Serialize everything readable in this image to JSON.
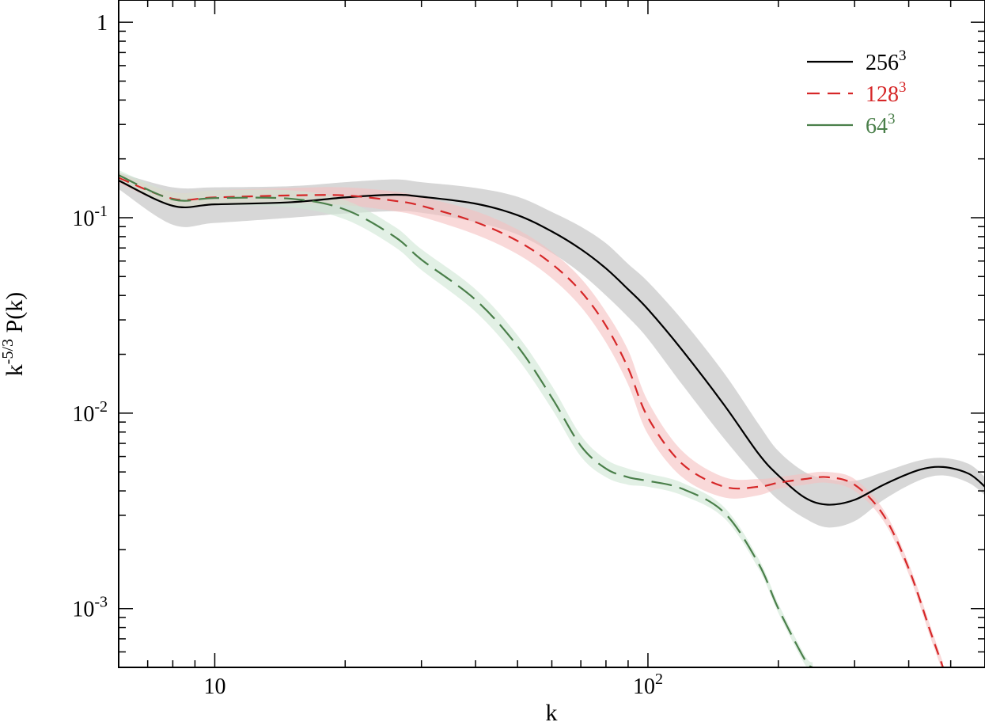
{
  "chart_data": {
    "type": "line",
    "title": "",
    "xlabel": "k",
    "ylabel": "k-5/3 P(k)",
    "ylabel_parts": {
      "base": "k",
      "sup": "-5/3",
      "rest": " P(k)"
    },
    "x_scale": "log",
    "y_scale": "log",
    "xlim": [
      6,
      600
    ],
    "ylim": [
      0.0005,
      1.3
    ],
    "x_ticks": [
      {
        "value": 10,
        "label": "10",
        "sup": ""
      },
      {
        "value": 100,
        "label": "10",
        "sup": "2"
      }
    ],
    "y_ticks": [
      {
        "value": 1,
        "label": "1",
        "sup": ""
      },
      {
        "value": 0.1,
        "label": "10",
        "sup": "-1"
      },
      {
        "value": 0.01,
        "label": "10",
        "sup": "-2"
      },
      {
        "value": 0.001,
        "label": "10",
        "sup": "-3"
      }
    ],
    "grid": false,
    "legend_position": "top-right",
    "series": [
      {
        "name": "256",
        "name_sup": "3",
        "color": "#000000",
        "band_color": "#bdbdbd",
        "dash": "solid",
        "x": [
          6,
          8,
          10,
          15,
          20,
          26,
          30,
          40,
          50,
          60,
          70,
          80,
          90,
          100,
          120,
          150,
          180,
          200,
          230,
          260,
          300,
          350,
          420,
          480,
          550,
          600
        ],
        "y": [
          0.155,
          0.115,
          0.117,
          0.12,
          0.127,
          0.131,
          0.128,
          0.118,
          0.103,
          0.085,
          0.069,
          0.055,
          0.043,
          0.034,
          0.021,
          0.011,
          0.0062,
          0.0048,
          0.0037,
          0.0034,
          0.0036,
          0.0043,
          0.0051,
          0.0053,
          0.0049,
          0.0042
        ],
        "band_lower": [
          0.14,
          0.092,
          0.094,
          0.1,
          0.105,
          0.108,
          0.106,
          0.095,
          0.082,
          0.066,
          0.052,
          0.04,
          0.031,
          0.024,
          0.014,
          0.0074,
          0.0046,
          0.0036,
          0.0029,
          0.0026,
          0.0028,
          0.0036,
          0.0045,
          0.0048,
          0.0044,
          0.0038
        ],
        "band_upper": [
          0.17,
          0.143,
          0.143,
          0.145,
          0.152,
          0.157,
          0.152,
          0.142,
          0.128,
          0.107,
          0.09,
          0.074,
          0.058,
          0.047,
          0.03,
          0.016,
          0.0088,
          0.0064,
          0.005,
          0.0046,
          0.0045,
          0.005,
          0.0057,
          0.0059,
          0.0055,
          0.0047
        ]
      },
      {
        "name": "128",
        "name_sup": "3",
        "color": "#d62728",
        "band_color": "#f5c0c0",
        "dash": "dashed",
        "x": [
          6,
          8,
          10,
          15,
          20,
          26,
          30,
          40,
          50,
          60,
          70,
          80,
          90,
          100,
          120,
          150,
          180,
          200,
          230,
          260,
          300,
          350,
          400,
          450,
          480
        ],
        "y": [
          0.16,
          0.125,
          0.127,
          0.13,
          0.13,
          0.122,
          0.115,
          0.095,
          0.076,
          0.058,
          0.042,
          0.028,
          0.017,
          0.0095,
          0.0055,
          0.0042,
          0.0042,
          0.0044,
          0.0046,
          0.0047,
          0.0043,
          0.003,
          0.0016,
          0.00075,
          0.0005
        ],
        "band_lower": [
          0.15,
          0.115,
          0.116,
          0.118,
          0.116,
          0.108,
          0.101,
          0.082,
          0.065,
          0.049,
          0.035,
          0.023,
          0.014,
          0.0078,
          0.0047,
          0.0037,
          0.0038,
          0.0041,
          0.0043,
          0.0044,
          0.004,
          0.0028,
          0.0015,
          0.0007,
          0.00047
        ],
        "band_upper": [
          0.17,
          0.135,
          0.138,
          0.142,
          0.143,
          0.136,
          0.128,
          0.108,
          0.087,
          0.067,
          0.049,
          0.033,
          0.021,
          0.0115,
          0.0064,
          0.0047,
          0.0046,
          0.0047,
          0.0049,
          0.005,
          0.0046,
          0.0032,
          0.0017,
          0.0008,
          0.00053
        ]
      },
      {
        "name": "64",
        "name_sup": "3",
        "color": "#4a7f4a",
        "band_color": "#cfe6d3",
        "dash": "long-dash",
        "x": [
          6,
          8,
          10,
          15,
          20,
          26,
          30,
          40,
          50,
          60,
          70,
          80,
          90,
          100,
          120,
          150,
          180,
          200,
          230,
          240
        ],
        "y": [
          0.165,
          0.124,
          0.126,
          0.125,
          0.11,
          0.08,
          0.061,
          0.038,
          0.022,
          0.012,
          0.0068,
          0.0052,
          0.0047,
          0.0045,
          0.0041,
          0.0031,
          0.0017,
          0.001,
          0.00055,
          0.0005
        ],
        "band_lower": [
          0.155,
          0.115,
          0.116,
          0.113,
          0.098,
          0.071,
          0.054,
          0.033,
          0.019,
          0.0105,
          0.006,
          0.0047,
          0.0043,
          0.0042,
          0.0038,
          0.0029,
          0.0016,
          0.00095,
          0.00052,
          0.00047
        ],
        "band_upper": [
          0.175,
          0.135,
          0.138,
          0.138,
          0.123,
          0.09,
          0.069,
          0.043,
          0.025,
          0.0138,
          0.0077,
          0.0058,
          0.0052,
          0.0049,
          0.0044,
          0.0033,
          0.0018,
          0.00106,
          0.00058,
          0.00053
        ]
      }
    ]
  }
}
